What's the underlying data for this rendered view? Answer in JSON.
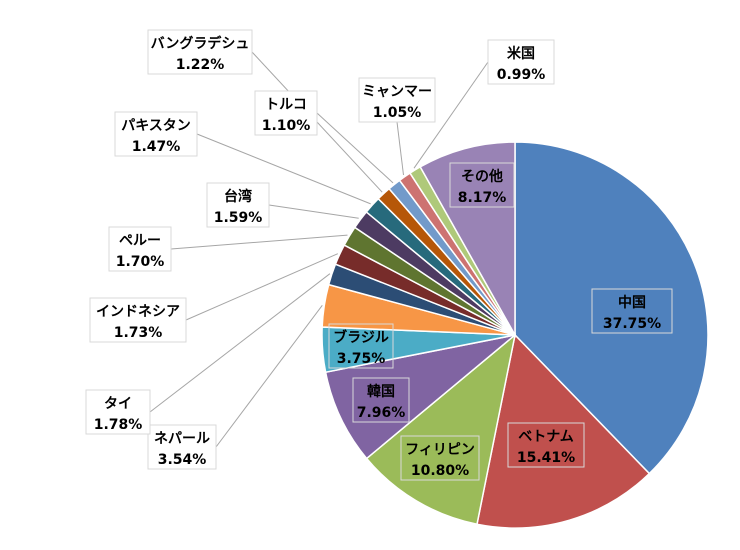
{
  "chart_data": {
    "type": "pie",
    "title": "",
    "start_angle_deg": 0,
    "direction": "clockwise",
    "slices": [
      {
        "name": "中国",
        "value": 37.75,
        "label": "37.75%",
        "color": "#4F81BD"
      },
      {
        "name": "ベトナム",
        "value": 15.41,
        "label": "15.41%",
        "color": "#C0504D"
      },
      {
        "name": "フィリピン",
        "value": 10.8,
        "label": "10.80%",
        "color": "#9BBB59"
      },
      {
        "name": "韓国",
        "value": 7.96,
        "label": "7.96%",
        "color": "#8064A2"
      },
      {
        "name": "ブラジル",
        "value": 3.75,
        "label": "3.75%",
        "color": "#4BACC6"
      },
      {
        "name": "ネパール",
        "value": 3.54,
        "label": "3.54%",
        "color": "#F79646"
      },
      {
        "name": "タイ",
        "value": 1.78,
        "label": "1.78%",
        "color": "#2C4D75"
      },
      {
        "name": "インドネシア",
        "value": 1.73,
        "label": "1.73%",
        "color": "#772C2A"
      },
      {
        "name": "ペルー",
        "value": 1.7,
        "label": "1.70%",
        "color": "#5F7530"
      },
      {
        "name": "台湾",
        "value": 1.59,
        "label": "1.59%",
        "color": "#4D3B62"
      },
      {
        "name": "パキスタン",
        "value": 1.47,
        "label": "1.47%",
        "color": "#276A7C"
      },
      {
        "name": "バングラデシュ",
        "value": 1.22,
        "label": "1.22%",
        "color": "#B65708"
      },
      {
        "name": "トルコ",
        "value": 1.1,
        "label": "1.10%",
        "color": "#729ACA"
      },
      {
        "name": "ミャンマー",
        "value": 1.05,
        "label": "1.05%",
        "color": "#CD7371"
      },
      {
        "name": "米国",
        "value": 0.99,
        "label": "0.99%",
        "color": "#AFC97A"
      },
      {
        "name": "その他",
        "value": 8.17,
        "label": "8.17%",
        "color": "#9983B5"
      }
    ]
  }
}
